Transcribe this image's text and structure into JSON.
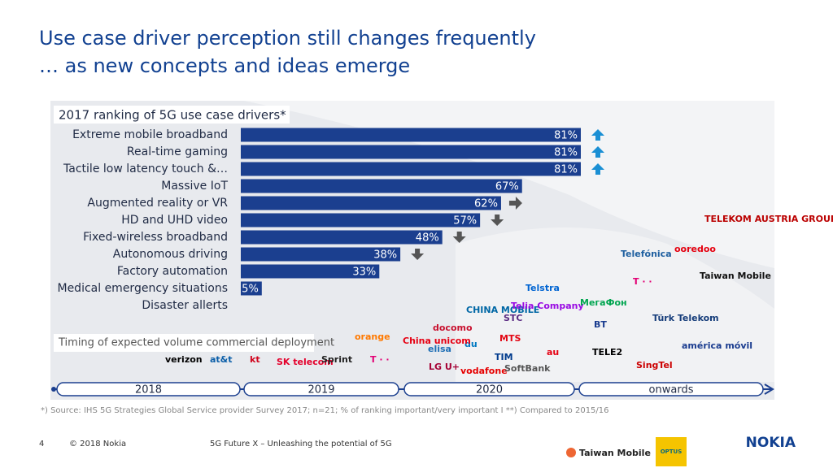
{
  "title": "Use case driver perception still changes frequently",
  "subtitle": "… as new concepts and ideas emerge",
  "chart_data": {
    "type": "bar",
    "orientation": "horizontal",
    "title": "2017 ranking of 5G use case drivers*",
    "categories": [
      "Extreme mobile broadband",
      "Real-time gaming",
      "Tactile low latency touch &…",
      "Massive IoT",
      "Augmented reality or VR",
      "HD and UHD video",
      "Fixed-wireless broadband",
      "Autonomous driving",
      "Factory automation",
      "Medical emergency situations",
      "Disaster allerts"
    ],
    "values": [
      81,
      81,
      81,
      67,
      62,
      57,
      48,
      38,
      33,
      5,
      null
    ],
    "value_labels": [
      "81%",
      "81%",
      "81%",
      "67%",
      "62%",
      "57%",
      "48%",
      "38%",
      "33%",
      "5%",
      null
    ],
    "trend": [
      "up",
      "up",
      "up",
      null,
      "right",
      "down",
      "down",
      "down",
      null,
      null,
      null
    ],
    "color": "#1b3f8f"
  },
  "timeline": {
    "title": "Timing of expected volume commercial deployment",
    "periods": [
      "2018",
      "2019",
      "2020",
      "onwards"
    ]
  },
  "logos": [
    "verizon",
    "at&t",
    "kt",
    "SK telecom",
    "Sprint",
    "T · ·",
    "orange",
    "docomo",
    "elisa",
    "LG U+",
    "vodafone",
    "du",
    "CHINA MOBILE",
    "China unicom",
    "Telstra",
    "Telia Company",
    "STC",
    "MTS",
    "TIM",
    "au",
    "SoftBank",
    "МегаФон",
    "BT",
    "Türk Telekom",
    "TELE2",
    "SingTel",
    "Telefónica",
    "ooredoo",
    "Taiwan Mobile",
    "TELEKOM AUSTRIA GROUP",
    "américa móvil",
    "T · ·"
  ],
  "footnote": "*) Source: IHS 5G Strategies Global Service provider Survey 2017; n=21; % of ranking important/very important   I   **) Compared to 2015/16",
  "footer": {
    "page": "4",
    "copyright": "© 2018 Nokia",
    "text": "5G Future X – Unleashing the potential of 5G",
    "logos": [
      "Taiwan Mobile",
      "OPTUS",
      "NOKIA"
    ]
  }
}
